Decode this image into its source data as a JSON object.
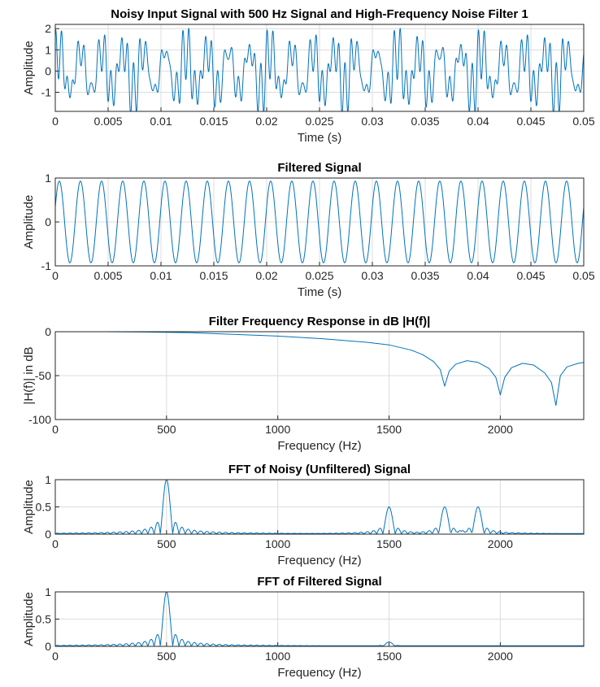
{
  "colors": {
    "line": "#0072bd",
    "axis": "#262626",
    "grid": "#dcdcdc"
  },
  "chart_data": [
    {
      "type": "line",
      "title": "Noisy Input Signal with 500 Hz Signal and High-Frequency Noise Filter 1",
      "xlabel": "Time (s)",
      "ylabel": "Amplitude",
      "xlim": [
        0,
        0.05
      ],
      "ylim": [
        -1.9,
        2.2
      ],
      "xticks": [
        "0",
        "0.005",
        "0.01",
        "0.015",
        "0.02",
        "0.025",
        "0.03",
        "0.035",
        "0.04",
        "0.045",
        "0.05"
      ],
      "yticks": [
        "-1",
        "0",
        "1",
        "2"
      ],
      "grid": true,
      "series": [
        {
          "components": [
            {
              "freq_hz": 500,
              "amp": 1
            },
            {
              "freq_hz": 1500,
              "amp": 0.5
            },
            {
              "freq_hz": 1750,
              "amp": 0.5
            },
            {
              "freq_hz": 1900,
              "amp": 0.5
            }
          ]
        }
      ]
    },
    {
      "type": "line",
      "title": "Filtered Signal",
      "xlabel": "Time (s)",
      "ylabel": "Amplitude",
      "xlim": [
        0,
        0.05
      ],
      "ylim": [
        -1,
        1
      ],
      "xticks": [
        "0",
        "0.005",
        "0.01",
        "0.015",
        "0.02",
        "0.025",
        "0.03",
        "0.035",
        "0.04",
        "0.045",
        "0.05"
      ],
      "yticks": [
        "-1",
        "0",
        "1"
      ],
      "grid": true,
      "series": [
        {
          "components": [
            {
              "freq_hz": 500,
              "amp": 0.93
            }
          ]
        }
      ]
    },
    {
      "type": "line",
      "title": "Filter Frequency Response in dB |H(f)|",
      "xlabel": "Frequency (Hz)",
      "ylabel": "|H(f)| in dB",
      "xlim": [
        0,
        2375
      ],
      "ylim": [
        -100,
        0
      ],
      "xticks": [
        "0",
        "500",
        "1000",
        "1500",
        "2000"
      ],
      "yticks": [
        "-100",
        "-50",
        "0"
      ],
      "grid": true,
      "series": [
        {
          "x": [
            0,
            200,
            400,
            600,
            800,
            1000,
            1200,
            1400,
            1500,
            1600,
            1650,
            1700,
            1730,
            1750,
            1770,
            1800,
            1850,
            1900,
            1950,
            1980,
            2000,
            2020,
            2050,
            2100,
            2150,
            2200,
            2230,
            2250,
            2270,
            2300,
            2350,
            2375
          ],
          "y": [
            0,
            0,
            -0.3,
            -1,
            -3,
            -5,
            -8,
            -12,
            -15,
            -21,
            -26,
            -34,
            -43,
            -62,
            -45,
            -37,
            -33,
            -35,
            -42,
            -52,
            -72,
            -52,
            -41,
            -36,
            -38,
            -47,
            -58,
            -84,
            -50,
            -40,
            -36,
            -35
          ]
        }
      ]
    },
    {
      "type": "line",
      "title": "FFT of Noisy (Unfiltered) Signal",
      "xlabel": "Frequency (Hz)",
      "ylabel": "Amplitude",
      "xlim": [
        0,
        2375
      ],
      "ylim": [
        0,
        1
      ],
      "xticks": [
        "0",
        "500",
        "1000",
        "1500",
        "2000"
      ],
      "yticks": [
        "0",
        "0.5",
        "1"
      ],
      "grid": true,
      "series": [
        {
          "peaks": [
            {
              "x": 500,
              "y": 1
            },
            {
              "x": 1500,
              "y": 0.5
            },
            {
              "x": 1750,
              "y": 0.5
            },
            {
              "x": 1900,
              "y": 0.5
            }
          ]
        }
      ]
    },
    {
      "type": "line",
      "title": "FFT of Filtered Signal",
      "xlabel": "Frequency (Hz)",
      "ylabel": "Amplitude",
      "xlim": [
        0,
        2375
      ],
      "ylim": [
        0,
        1
      ],
      "xticks": [
        "0",
        "500",
        "1000",
        "1500",
        "2000"
      ],
      "yticks": [
        "0",
        "0.5",
        "1"
      ],
      "grid": true,
      "series": [
        {
          "peaks": [
            {
              "x": 500,
              "y": 1
            },
            {
              "x": 1500,
              "y": 0.08
            }
          ]
        }
      ]
    }
  ]
}
